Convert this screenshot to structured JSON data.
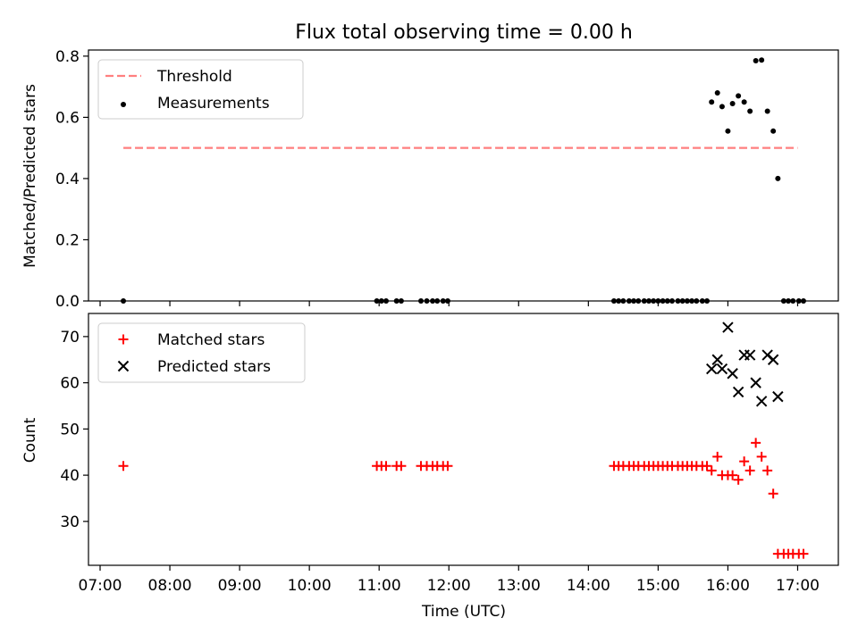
{
  "title": "Flux total observing time = 0.00 h",
  "xlabel": "Time (UTC)",
  "colors": {
    "threshold": "#ff7f7f",
    "measurement": "#000000",
    "matched": "#ff0000",
    "predicted": "#000000"
  },
  "chart_data": [
    {
      "type": "scatter",
      "ylabel": "Matched/Predicted stars",
      "xlim": [
        "06:50",
        "17:35"
      ],
      "ylim": [
        0,
        0.82
      ],
      "yticks": [
        "0.0",
        "0.2",
        "0.4",
        "0.6",
        "0.8"
      ],
      "legend": {
        "placement": "upper-left",
        "entries": [
          "Threshold",
          "Measurements"
        ]
      },
      "threshold": {
        "name": "Threshold",
        "y": 0.5,
        "x": [
          "07:20",
          "17:00"
        ],
        "style": "dashed"
      },
      "series": [
        {
          "name": "Measurements",
          "x": [
            "07:20",
            "10:58",
            "11:02",
            "11:06",
            "11:15",
            "11:19",
            "11:36",
            "11:41",
            "11:46",
            "11:50",
            "11:55",
            "11:59",
            "14:22",
            "14:26",
            "14:30",
            "14:35",
            "14:39",
            "14:43",
            "14:48",
            "14:52",
            "14:56",
            "15:00",
            "15:04",
            "15:08",
            "15:12",
            "15:17",
            "15:21",
            "15:25",
            "15:29",
            "15:33",
            "15:38",
            "15:42",
            "15:46",
            "15:51",
            "15:55",
            "16:00",
            "16:04",
            "16:09",
            "16:14",
            "16:19",
            "16:24",
            "16:29",
            "16:34",
            "16:39",
            "16:43",
            "16:48",
            "16:52",
            "16:56",
            "17:01",
            "17:05"
          ],
          "y": [
            0,
            0,
            0,
            0,
            0,
            0,
            0,
            0,
            0,
            0,
            0,
            0,
            0,
            0,
            0,
            0,
            0,
            0,
            0,
            0,
            0,
            0,
            0,
            0,
            0,
            0,
            0,
            0,
            0,
            0,
            0,
            0,
            0.65,
            0.68,
            0.635,
            0.555,
            0.645,
            0.67,
            0.65,
            0.62,
            0.785,
            0.787,
            0.62,
            0.555,
            0.4,
            0,
            0,
            0,
            0,
            0
          ]
        }
      ]
    },
    {
      "type": "scatter",
      "ylabel": "Count",
      "xlim": [
        "06:50",
        "17:35"
      ],
      "ylim": [
        20.5,
        75
      ],
      "yticks": [
        "30",
        "40",
        "50",
        "60",
        "70"
      ],
      "xticks": [
        "07:00",
        "08:00",
        "09:00",
        "10:00",
        "11:00",
        "12:00",
        "13:00",
        "14:00",
        "15:00",
        "16:00",
        "17:00"
      ],
      "legend": {
        "placement": "upper-left",
        "entries": [
          "Matched stars",
          "Predicted stars"
        ]
      },
      "series": [
        {
          "name": "Matched stars",
          "marker": "plus",
          "x": [
            "07:20",
            "10:58",
            "11:02",
            "11:06",
            "11:15",
            "11:19",
            "11:36",
            "11:41",
            "11:46",
            "11:50",
            "11:55",
            "11:59",
            "14:22",
            "14:26",
            "14:30",
            "14:35",
            "14:39",
            "14:43",
            "14:48",
            "14:52",
            "14:56",
            "15:00",
            "15:04",
            "15:08",
            "15:12",
            "15:17",
            "15:21",
            "15:25",
            "15:29",
            "15:33",
            "15:38",
            "15:42",
            "15:46",
            "15:51",
            "15:55",
            "16:00",
            "16:04",
            "16:09",
            "16:14",
            "16:19",
            "16:24",
            "16:29",
            "16:34",
            "16:39",
            "16:43",
            "16:48",
            "16:52",
            "16:56",
            "17:01",
            "17:05"
          ],
          "y": [
            42,
            42,
            42,
            42,
            42,
            42,
            42,
            42,
            42,
            42,
            42,
            42,
            42,
            42,
            42,
            42,
            42,
            42,
            42,
            42,
            42,
            42,
            42,
            42,
            42,
            42,
            42,
            42,
            42,
            42,
            42,
            42,
            41,
            44,
            40,
            40,
            40,
            39,
            43,
            41,
            47,
            44,
            41,
            36,
            23,
            23,
            23,
            23,
            23,
            23
          ]
        },
        {
          "name": "Predicted stars",
          "marker": "x",
          "x": [
            "15:46",
            "15:51",
            "15:55",
            "16:00",
            "16:04",
            "16:09",
            "16:14",
            "16:19",
            "16:24",
            "16:29",
            "16:34",
            "16:39",
            "16:43"
          ],
          "y": [
            63,
            65,
            63,
            72,
            62,
            58,
            66,
            66,
            60,
            56,
            66,
            65,
            57
          ]
        }
      ]
    }
  ]
}
